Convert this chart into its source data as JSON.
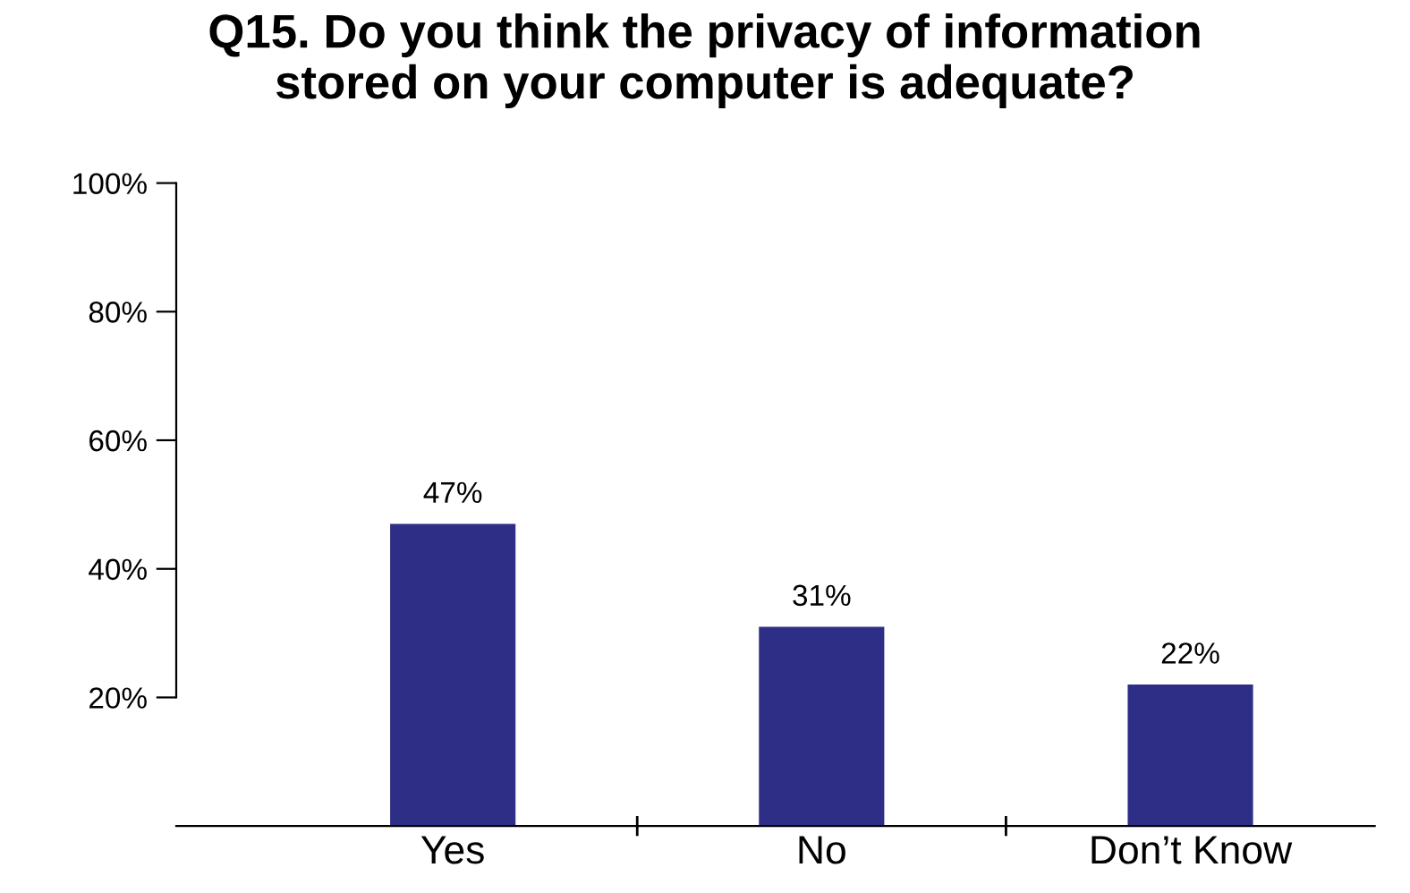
{
  "chart_data": {
    "type": "bar",
    "title": "Q15. Do you think the privacy of information\nstored on your computer is adequate?",
    "categories": [
      "Yes",
      "No",
      "Don’t Know"
    ],
    "values": [
      47,
      31,
      22
    ],
    "color": "#2e2e86",
    "value_labels": [
      "47%",
      "31%",
      "22%"
    ],
    "ylim": [
      0,
      100
    ],
    "yticks": [
      {
        "value": 20,
        "label": "20%"
      },
      {
        "value": 40,
        "label": "40%"
      },
      {
        "value": 60,
        "label": "60%"
      },
      {
        "value": 80,
        "label": "80%"
      },
      {
        "value": 100,
        "label": "100%"
      }
    ],
    "grid": false,
    "legend": false
  }
}
